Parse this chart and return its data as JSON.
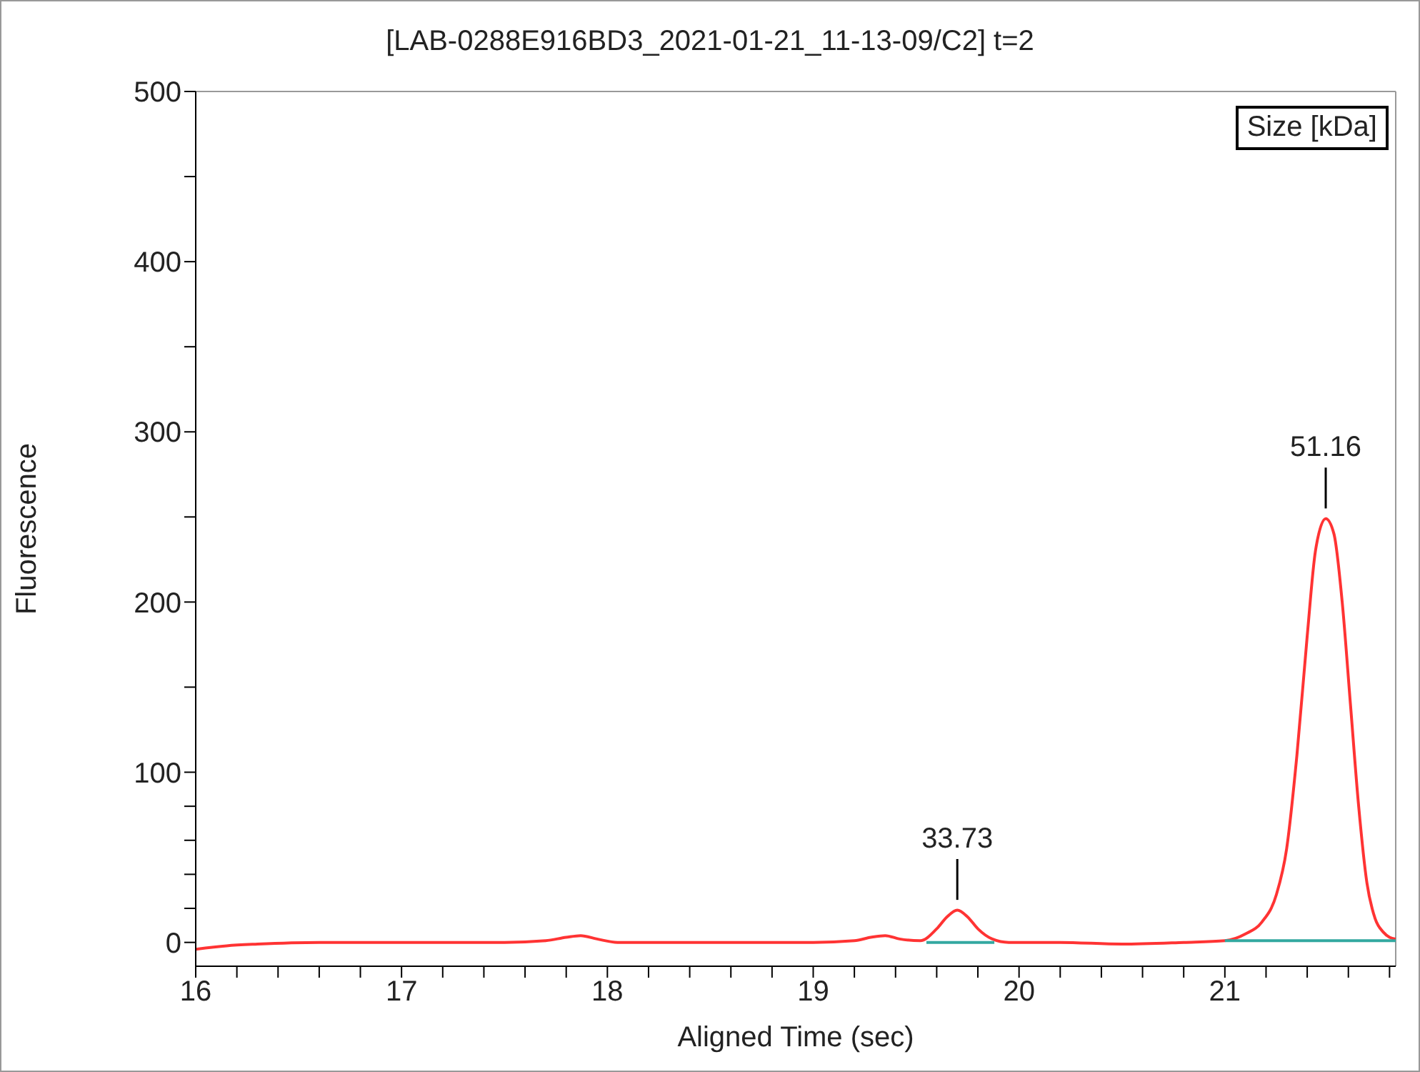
{
  "chart_data": {
    "type": "line",
    "title": "[LAB-0288E916BD3_2021-01-21_11-13-09/C2]  t=2",
    "xlabel": "Aligned Time (sec)",
    "ylabel": "Fluorescence",
    "legend_title": "Size [kDa]",
    "xlim": [
      16,
      21.83
    ],
    "ylim": [
      -14,
      500
    ],
    "xticks": [
      16,
      {
        "value": 16.2,
        "label": null
      },
      {
        "value": 16.4,
        "label": null
      },
      {
        "value": 16.6,
        "label": null
      },
      {
        "value": 16.8,
        "label": null
      },
      17,
      {
        "value": 17.2,
        "label": null
      },
      {
        "value": 17.4,
        "label": null
      },
      {
        "value": 17.6,
        "label": null
      },
      {
        "value": 17.8,
        "label": null
      },
      18,
      {
        "value": 18.2,
        "label": null
      },
      {
        "value": 18.4,
        "label": null
      },
      {
        "value": 18.6,
        "label": null
      },
      {
        "value": 18.8,
        "label": null
      },
      19,
      {
        "value": 19.2,
        "label": null
      },
      {
        "value": 19.4,
        "label": null
      },
      {
        "value": 19.6,
        "label": null
      },
      {
        "value": 19.8,
        "label": null
      },
      20,
      {
        "value": 20.2,
        "label": null
      },
      {
        "value": 20.4,
        "label": null
      },
      {
        "value": 20.6,
        "label": null
      },
      {
        "value": 20.8,
        "label": null
      },
      21,
      {
        "value": 21.2,
        "label": null
      },
      {
        "value": 21.4,
        "label": null
      },
      {
        "value": 21.6,
        "label": null
      },
      {
        "value": 21.8,
        "label": null
      }
    ],
    "yticks": [
      0,
      {
        "value": 20,
        "label": null
      },
      {
        "value": 40,
        "label": null
      },
      {
        "value": 60,
        "label": null
      },
      {
        "value": 80,
        "label": null
      },
      100,
      {
        "value": 150,
        "label": null
      },
      200,
      {
        "value": 250,
        "label": null
      },
      300,
      {
        "value": 350,
        "label": null
      },
      400,
      {
        "value": 450,
        "label": null
      },
      500
    ],
    "grid": false,
    "marker": "none",
    "line_style": "solid",
    "series": [
      {
        "color": "#ff3333",
        "x": [
          16.0,
          16.15,
          16.3,
          16.6,
          17.0,
          17.5,
          17.7,
          17.8,
          17.87,
          17.95,
          18.05,
          18.2,
          18.6,
          19.0,
          19.2,
          19.28,
          19.35,
          19.42,
          19.52,
          19.6,
          19.65,
          19.7,
          19.75,
          19.8,
          19.87,
          19.95,
          20.2,
          20.5,
          20.8,
          21.0,
          21.1,
          21.18,
          21.25,
          21.3,
          21.35,
          21.4,
          21.44,
          21.49,
          21.53,
          21.57,
          21.61,
          21.65,
          21.69,
          21.73,
          21.77,
          21.8,
          21.83
        ],
        "values": [
          -4,
          -2,
          -1,
          0,
          0,
          0,
          1,
          3,
          4,
          2,
          0,
          0,
          0,
          0,
          1,
          3,
          4,
          2,
          1,
          8,
          15,
          19,
          15,
          8,
          2,
          0,
          0,
          -1,
          0,
          1,
          5,
          12,
          28,
          55,
          110,
          180,
          230,
          249,
          240,
          200,
          140,
          80,
          35,
          14,
          6,
          3,
          2
        ]
      },
      {
        "color": "#33a8a0",
        "x": [
          19.55,
          19.88
        ],
        "values": [
          0,
          0
        ]
      },
      {
        "color": "#33a8a0",
        "x": [
          21.0,
          21.83
        ],
        "values": [
          1,
          1
        ]
      }
    ],
    "annotations": [
      {
        "text": "33.73",
        "x": 19.7,
        "y": 19
      },
      {
        "text": "51.16",
        "x": 21.49,
        "y": 249
      }
    ]
  }
}
